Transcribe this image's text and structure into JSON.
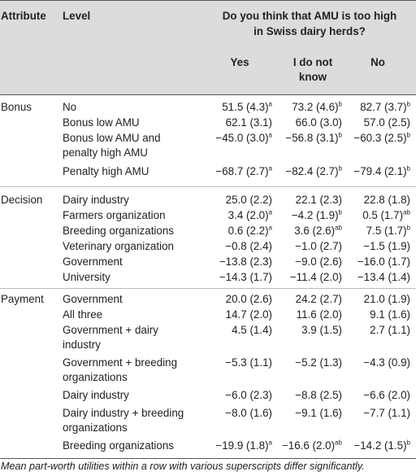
{
  "header": {
    "attribute": "Attribute",
    "level": "Level",
    "question_line1": "Do you think that AMU is too high",
    "question_line2": "in Swiss dairy herds?",
    "yes": "Yes",
    "idk_line1": "I do not",
    "idk_line2": "know",
    "no": "No"
  },
  "groups": [
    {
      "attribute": "Bonus",
      "rows": [
        {
          "level": [
            "No"
          ],
          "yes": "51.5 (4.3)",
          "yes_sup": "a",
          "idk": "73.2 (4.6)",
          "idk_sup": "b",
          "no": "82.7 (3.7)",
          "no_sup": "b"
        },
        {
          "level": [
            "Bonus low AMU"
          ],
          "yes": "62.1 (3.1)",
          "yes_sup": "",
          "idk": "66.0 (3.0)",
          "idk_sup": "",
          "no": "57.0 (2.5)",
          "no_sup": ""
        },
        {
          "level": [
            "Bonus low AMU and",
            "penalty high AMU"
          ],
          "yes": "−45.0 (3.0)",
          "yes_sup": "a",
          "idk": "−56.8 (3.1)",
          "idk_sup": "b",
          "no": "−60.3 (2.5)",
          "no_sup": "b"
        },
        {
          "level": [
            "Penalty high AMU"
          ],
          "yes": "−68.7 (2.7)",
          "yes_sup": "a",
          "idk": "−82.4 (2.7)",
          "idk_sup": "b",
          "no": "−79.4 (2.1)",
          "no_sup": "b"
        }
      ]
    },
    {
      "attribute": "Decision",
      "rows": [
        {
          "level": [
            "Dairy industry"
          ],
          "yes": "25.0 (2.2)",
          "yes_sup": "",
          "idk": "22.1 (2.3)",
          "idk_sup": "",
          "no": "22.8 (1.8)",
          "no_sup": ""
        },
        {
          "level": [
            "Farmers organization"
          ],
          "yes": "3.4 (2.0)",
          "yes_sup": "a",
          "idk": "−4.2 (1.9)",
          "idk_sup": "b",
          "no": "0.5 (1.7)",
          "no_sup": "ab"
        },
        {
          "level": [
            "Breeding organizations"
          ],
          "yes": "0.6 (2.2)",
          "yes_sup": "a",
          "idk": "3.6 (2.6)",
          "idk_sup": "ab",
          "no": "7.5 (1.7)",
          "no_sup": "b"
        },
        {
          "level": [
            "Veterinary organization"
          ],
          "yes": "−0.8 (2.4)",
          "yes_sup": "",
          "idk": "−1.0 (2.7)",
          "idk_sup": "",
          "no": "−1.5 (1.9)",
          "no_sup": ""
        },
        {
          "level": [
            "Government"
          ],
          "yes": "−13.8 (2.3)",
          "yes_sup": "",
          "idk": "−9.0 (2.6)",
          "idk_sup": "",
          "no": "−16.0 (1.7)",
          "no_sup": ""
        },
        {
          "level": [
            "University"
          ],
          "yes": "−14.3 (1.7)",
          "yes_sup": "",
          "idk": "−11.4 (2.0)",
          "idk_sup": "",
          "no": "−13.4 (1.4)",
          "no_sup": ""
        }
      ]
    },
    {
      "attribute": "Payment",
      "rows": [
        {
          "level": [
            "Government"
          ],
          "yes": "20.0 (2.6)",
          "yes_sup": "",
          "idk": "24.2 (2.7)",
          "idk_sup": "",
          "no": "21.0 (1.9)",
          "no_sup": ""
        },
        {
          "level": [
            "All three"
          ],
          "yes": "14.7 (2.0)",
          "yes_sup": "",
          "idk": "11.6 (2.0)",
          "idk_sup": "",
          "no": "9.1 (1.6)",
          "no_sup": ""
        },
        {
          "level": [
            "Government + dairy",
            "industry"
          ],
          "yes": "4.5 (1.4)",
          "yes_sup": "",
          "idk": "3.9 (1.5)",
          "idk_sup": "",
          "no": "2.7 (1.1)",
          "no_sup": ""
        },
        {
          "level": [
            "Government + breeding",
            "organizations"
          ],
          "yes": "−5.3 (1.1)",
          "yes_sup": "",
          "idk": "−5.2 (1.3)",
          "idk_sup": "",
          "no": "−4.3 (0.9)",
          "no_sup": ""
        },
        {
          "level": [
            "Dairy industry"
          ],
          "yes": "−6.0 (2.3)",
          "yes_sup": "",
          "idk": "−8.8 (2.5)",
          "idk_sup": "",
          "no": "−6.6 (2.0)",
          "no_sup": ""
        },
        {
          "level": [
            "Dairy industry + breeding",
            "organizations"
          ],
          "yes": "−8.0 (1.6)",
          "yes_sup": "",
          "idk": "−9.1 (1.6)",
          "idk_sup": "",
          "no": "−7.7 (1.1)",
          "no_sup": ""
        },
        {
          "level": [
            "Breeding organizations"
          ],
          "yes": "−19.9 (1.8)",
          "yes_sup": "a",
          "idk": "−16.6 (2.0)",
          "idk_sup": "ab",
          "no": "−14.2 (1.5)",
          "no_sup": "b"
        }
      ]
    }
  ],
  "footnote": "Mean part-worth utilities within a row with various superscripts differ significantly."
}
